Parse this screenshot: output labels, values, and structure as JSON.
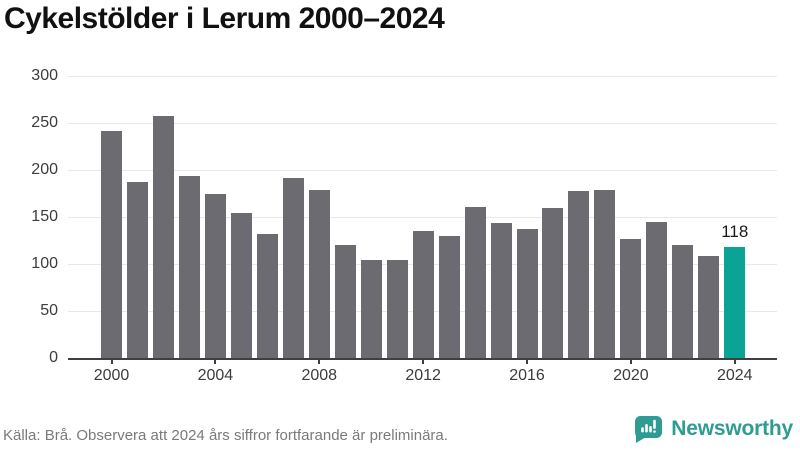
{
  "title": "Cykelstölder i Lerum 2000–2024",
  "footer": {
    "source_note": "Källa: Brå. Observera att 2024 års siffror fortfarande är preliminära.",
    "brand": "Newsworthy"
  },
  "colors": {
    "bar": "#6c6b72",
    "highlight": "#0aa396",
    "grid": "#e8e8e8",
    "axis": "#3f3f3f",
    "tick_label": "#3c3c3c",
    "brand_teal": "#2f9c94"
  },
  "chart_data": {
    "type": "bar",
    "title": "Cykelstölder i Lerum 2000–2024",
    "categories": [
      2000,
      2001,
      2002,
      2003,
      2004,
      2005,
      2006,
      2007,
      2008,
      2009,
      2010,
      2011,
      2012,
      2013,
      2014,
      2015,
      2016,
      2017,
      2018,
      2019,
      2020,
      2021,
      2022,
      2023,
      2024
    ],
    "values": [
      241,
      187,
      257,
      194,
      174,
      154,
      132,
      192,
      179,
      120,
      104,
      104,
      135,
      130,
      161,
      144,
      137,
      160,
      178,
      179,
      127,
      145,
      120,
      109,
      118
    ],
    "highlight_index": 24,
    "highlight_label": "118",
    "xlabel": "",
    "ylabel": "",
    "ylim": [
      0,
      300
    ],
    "yticks": [
      0,
      50,
      100,
      150,
      200,
      250,
      300
    ],
    "xticks": [
      2000,
      2004,
      2008,
      2012,
      2016,
      2020,
      2024
    ],
    "grid": true,
    "legend": "none",
    "bar_color": "#6c6b72",
    "highlight_color": "#0aa396"
  }
}
